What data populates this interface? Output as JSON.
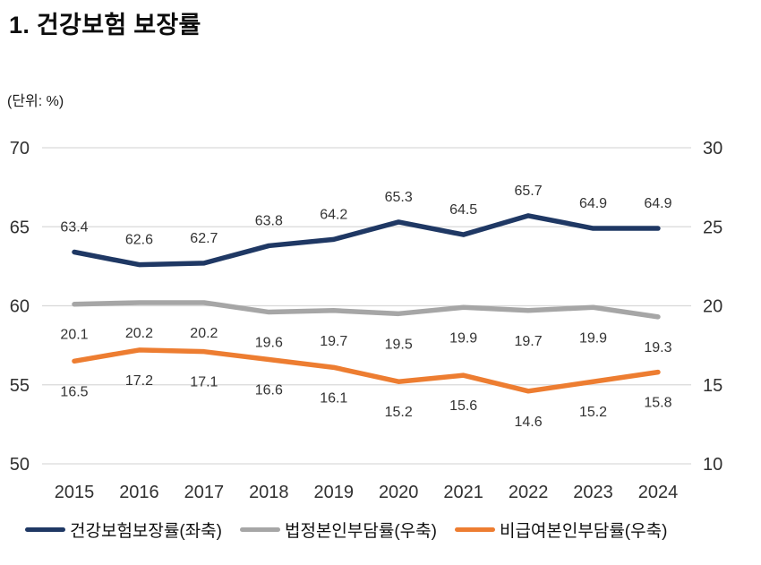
{
  "title": "1. 건강보험 보장률",
  "unit_label": "(단위: %)",
  "chart_data": {
    "type": "line",
    "unit": "%",
    "categories": [
      "2015",
      "2016",
      "2017",
      "2018",
      "2019",
      "2020",
      "2021",
      "2022",
      "2023",
      "2024"
    ],
    "series": [
      {
        "name": "건강보험보장률(좌축)",
        "axis": "left",
        "color": "#1F3864",
        "label_position": "above",
        "values": [
          63.4,
          62.6,
          62.7,
          63.8,
          64.2,
          65.3,
          64.5,
          65.7,
          64.9,
          64.9
        ]
      },
      {
        "name": "법정본인부담률(우축)",
        "axis": "right",
        "color": "#A6A6A6",
        "label_position": "below",
        "values": [
          20.1,
          20.2,
          20.2,
          19.6,
          19.7,
          19.5,
          19.9,
          19.7,
          19.9,
          19.3
        ]
      },
      {
        "name": "비급여본인부담률(우축)",
        "axis": "right",
        "color": "#ED7D31",
        "label_position": "below",
        "values": [
          16.5,
          17.2,
          17.1,
          16.6,
          16.1,
          15.2,
          15.6,
          14.6,
          15.2,
          15.8
        ]
      }
    ],
    "left_axis": {
      "ticks": [
        70,
        65,
        60,
        55,
        50
      ],
      "min": 50,
      "max": 70
    },
    "right_axis": {
      "ticks": [
        30,
        25,
        20,
        15,
        10
      ],
      "min": 10,
      "max": 30
    },
    "grid": "horizontal",
    "gridline_color": "#D9D9D9",
    "text_color": "#303030",
    "label_color": "#333333",
    "legend_position": "bottom"
  }
}
